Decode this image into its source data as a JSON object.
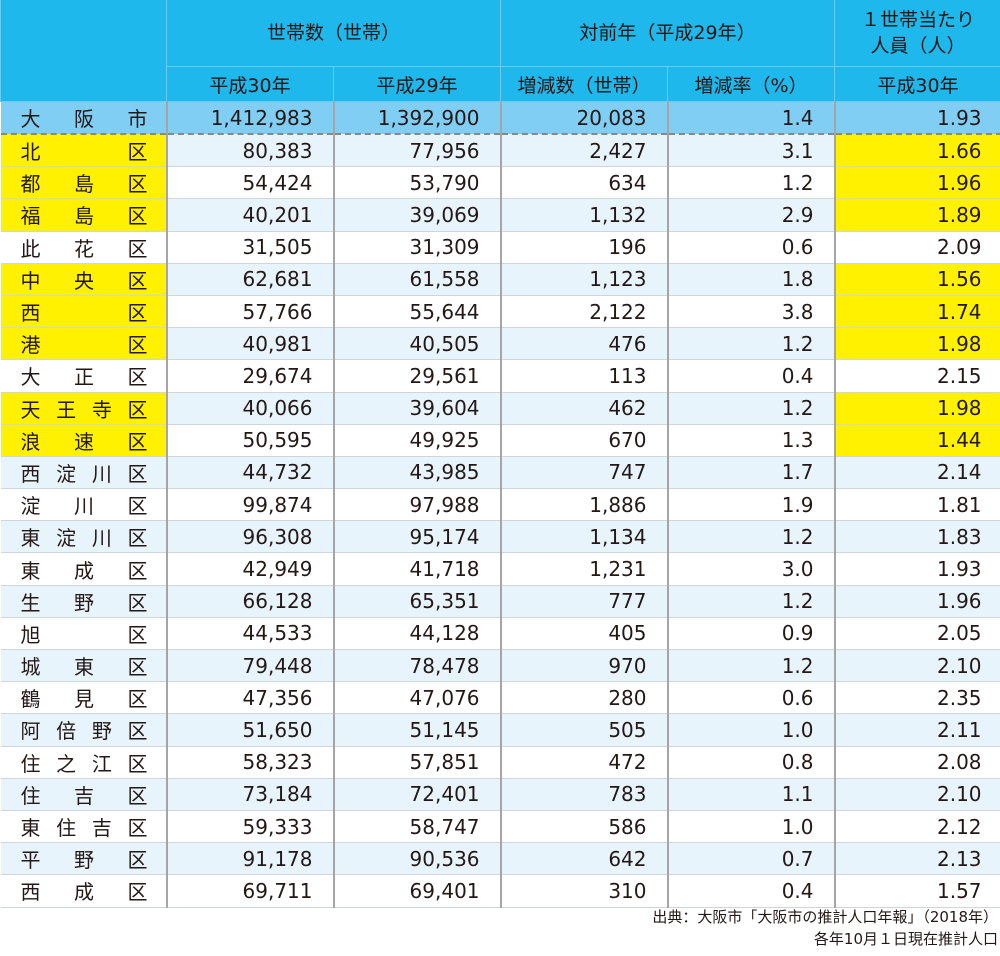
{
  "chart_data": {
    "type": "table",
    "headers": {
      "group1": "世帯数（世帯）",
      "group2": "対前年（平成29年）",
      "group3": "１世帯当たり人員（人）",
      "h30": "平成30年",
      "h29": "平成29年",
      "change": "増減数（世帯）",
      "rate": "増減率（%）",
      "per_h30": "平成30年"
    },
    "city": {
      "name": "大阪市",
      "h30": "1,412,983",
      "h29": "1,392,900",
      "change": "20,083",
      "rate": "1.4",
      "per": "1.93"
    },
    "rows": [
      {
        "name": "北区",
        "h30": "80,383",
        "h29": "77,956",
        "change": "2,427",
        "rate": "3.1",
        "per": "1.66",
        "highlight": true
      },
      {
        "name": "都島区",
        "h30": "54,424",
        "h29": "53,790",
        "change": "634",
        "rate": "1.2",
        "per": "1.96",
        "highlight": true
      },
      {
        "name": "福島区",
        "h30": "40,201",
        "h29": "39,069",
        "change": "1,132",
        "rate": "2.9",
        "per": "1.89",
        "highlight": true
      },
      {
        "name": "此花区",
        "h30": "31,505",
        "h29": "31,309",
        "change": "196",
        "rate": "0.6",
        "per": "2.09",
        "highlight": false
      },
      {
        "name": "中央区",
        "h30": "62,681",
        "h29": "61,558",
        "change": "1,123",
        "rate": "1.8",
        "per": "1.56",
        "highlight": true
      },
      {
        "name": "西区",
        "h30": "57,766",
        "h29": "55,644",
        "change": "2,122",
        "rate": "3.8",
        "per": "1.74",
        "highlight": true
      },
      {
        "name": "港区",
        "h30": "40,981",
        "h29": "40,505",
        "change": "476",
        "rate": "1.2",
        "per": "1.98",
        "highlight": true
      },
      {
        "name": "大正区",
        "h30": "29,674",
        "h29": "29,561",
        "change": "113",
        "rate": "0.4",
        "per": "2.15",
        "highlight": false
      },
      {
        "name": "天王寺区",
        "h30": "40,066",
        "h29": "39,604",
        "change": "462",
        "rate": "1.2",
        "per": "1.98",
        "highlight": true
      },
      {
        "name": "浪速区",
        "h30": "50,595",
        "h29": "49,925",
        "change": "670",
        "rate": "1.3",
        "per": "1.44",
        "highlight": true
      },
      {
        "name": "西淀川区",
        "h30": "44,732",
        "h29": "43,985",
        "change": "747",
        "rate": "1.7",
        "per": "2.14",
        "highlight": false
      },
      {
        "name": "淀川区",
        "h30": "99,874",
        "h29": "97,988",
        "change": "1,886",
        "rate": "1.9",
        "per": "1.81",
        "highlight": false
      },
      {
        "name": "東淀川区",
        "h30": "96,308",
        "h29": "95,174",
        "change": "1,134",
        "rate": "1.2",
        "per": "1.83",
        "highlight": false
      },
      {
        "name": "東成区",
        "h30": "42,949",
        "h29": "41,718",
        "change": "1,231",
        "rate": "3.0",
        "per": "1.93",
        "highlight": false
      },
      {
        "name": "生野区",
        "h30": "66,128",
        "h29": "65,351",
        "change": "777",
        "rate": "1.2",
        "per": "1.96",
        "highlight": false
      },
      {
        "name": "旭区",
        "h30": "44,533",
        "h29": "44,128",
        "change": "405",
        "rate": "0.9",
        "per": "2.05",
        "highlight": false
      },
      {
        "name": "城東区",
        "h30": "79,448",
        "h29": "78,478",
        "change": "970",
        "rate": "1.2",
        "per": "2.10",
        "highlight": false
      },
      {
        "name": "鶴見区",
        "h30": "47,356",
        "h29": "47,076",
        "change": "280",
        "rate": "0.6",
        "per": "2.35",
        "highlight": false
      },
      {
        "name": "阿倍野区",
        "h30": "51,650",
        "h29": "51,145",
        "change": "505",
        "rate": "1.0",
        "per": "2.11",
        "highlight": false
      },
      {
        "name": "住之江区",
        "h30": "58,323",
        "h29": "57,851",
        "change": "472",
        "rate": "0.8",
        "per": "2.08",
        "highlight": false
      },
      {
        "name": "住吉区",
        "h30": "73,184",
        "h29": "72,401",
        "change": "783",
        "rate": "1.1",
        "per": "2.10",
        "highlight": false
      },
      {
        "name": "東住吉区",
        "h30": "59,333",
        "h29": "58,747",
        "change": "586",
        "rate": "1.0",
        "per": "2.12",
        "highlight": false
      },
      {
        "name": "平野区",
        "h30": "91,178",
        "h29": "90,536",
        "change": "642",
        "rate": "0.7",
        "per": "2.13",
        "highlight": false
      },
      {
        "name": "西成区",
        "h30": "69,711",
        "h29": "69,401",
        "change": "310",
        "rate": "0.4",
        "per": "1.57",
        "highlight": false
      }
    ],
    "highlight_color": "#fff100"
  },
  "footer": {
    "source": "出典：大阪市「大阪市の推計人口年報」（2018年）",
    "note": "各年10月１日現在推計人口"
  }
}
